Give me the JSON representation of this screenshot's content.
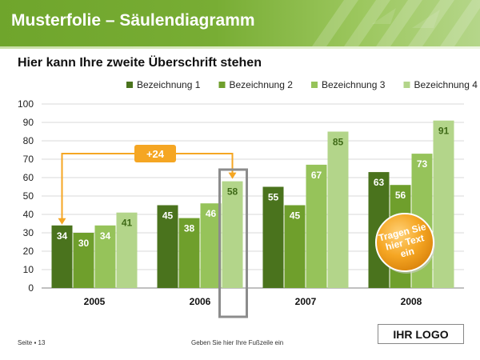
{
  "slide": {
    "title": "Musterfolie – Säulendiagramm",
    "subtitle": "Hier kann Ihre zweite Überschrift stehen",
    "page_label": "Seite ▪ 13",
    "footer_text": "Geben Sie hier Ihre Fußzeile ein",
    "logo_text": "IHR LOGO"
  },
  "colors": {
    "header_green": "#78ad34",
    "series": [
      "#4a731d",
      "#6f9f2c",
      "#96c35a",
      "#b3d58a"
    ],
    "callout_orange": "#f5a623",
    "highlight_box": "#8c8c8c"
  },
  "chart_data": {
    "type": "bar",
    "categories": [
      "2005",
      "2006",
      "2007",
      "2008"
    ],
    "series": [
      {
        "name": "Bezeichnung 1",
        "values": [
          34,
          45,
          55,
          63
        ]
      },
      {
        "name": "Bezeichnung 2",
        "values": [
          30,
          38,
          45,
          56
        ]
      },
      {
        "name": "Bezeichnung 3",
        "values": [
          34,
          46,
          67,
          73
        ]
      },
      {
        "name": "Bezeichnung 4",
        "values": [
          41,
          58,
          85,
          91
        ]
      }
    ],
    "ylim": [
      0,
      100
    ],
    "yticks": [
      0,
      10,
      20,
      30,
      40,
      50,
      60,
      70,
      80,
      90,
      100
    ],
    "legend_position": "top-right",
    "grid": true,
    "data_labels": true,
    "annotations": {
      "difference": {
        "label": "+24",
        "from": {
          "category": "2005",
          "series": "Bezeichnung 1"
        },
        "to": {
          "category": "2006",
          "series": "Bezeichnung 4"
        }
      },
      "highlight": {
        "category": "2006",
        "series": "Bezeichnung 4"
      },
      "badge": {
        "text": [
          "Tragen Sie",
          "hier Text",
          "ein"
        ]
      }
    }
  }
}
